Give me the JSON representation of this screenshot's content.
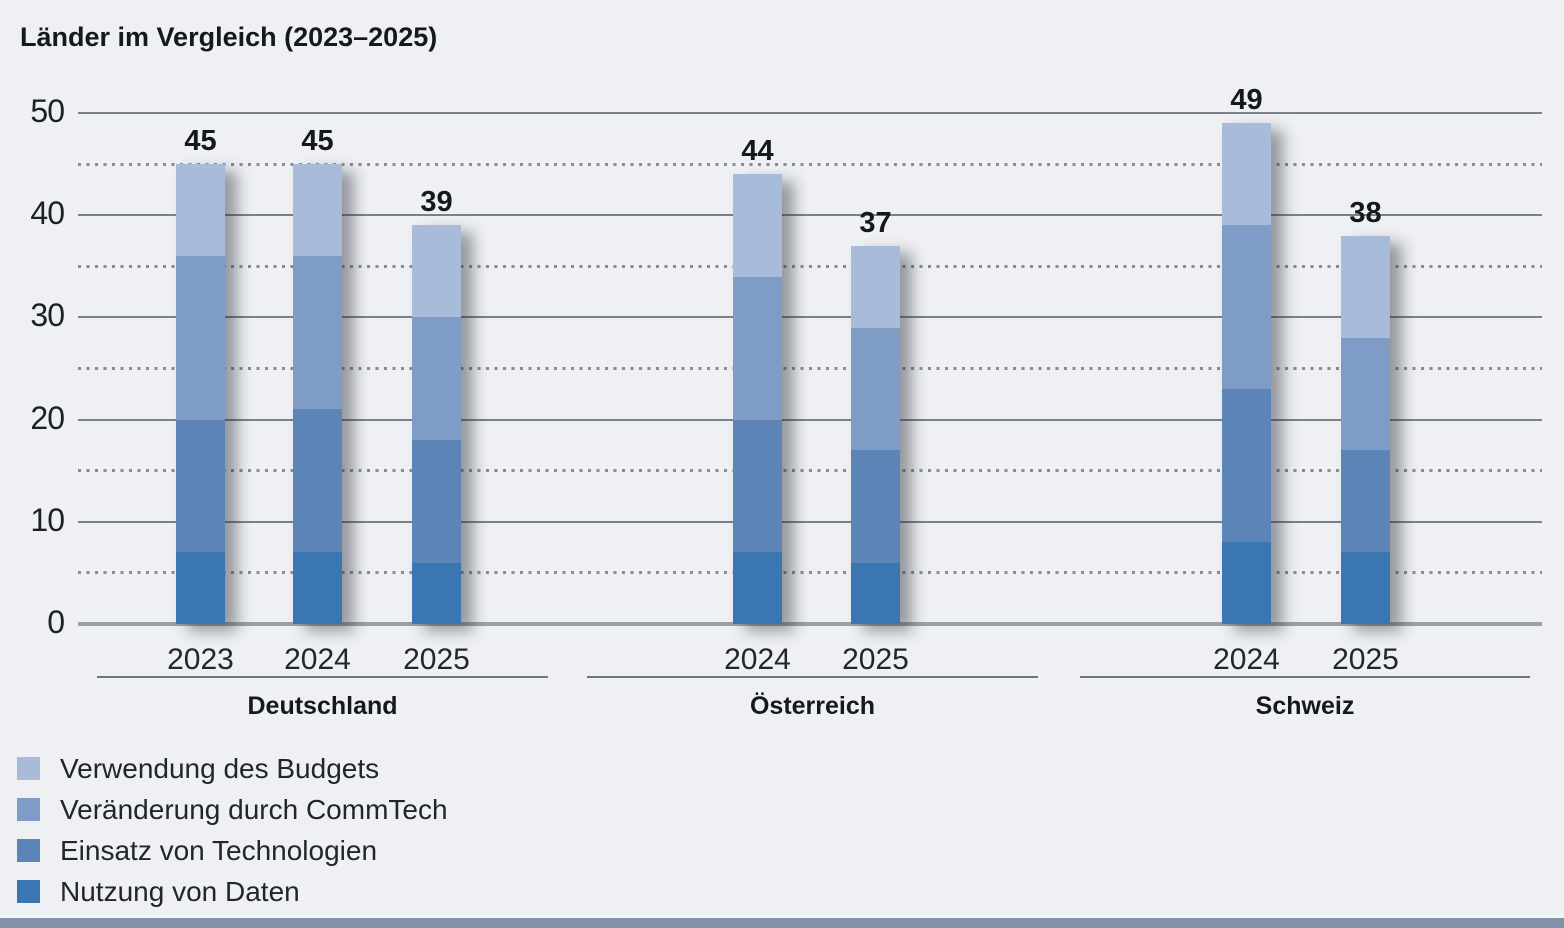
{
  "title": "Länder im Vergleich (2023–2025)",
  "chart_data": {
    "type": "bar",
    "stacked": true,
    "title": "Länder im Vergleich (2023–2025)",
    "ylim": [
      0,
      50
    ],
    "solid_gridlines": [
      0,
      10,
      20,
      30,
      40,
      50
    ],
    "dotted_gridlines": [
      5,
      15,
      25,
      35,
      45
    ],
    "grid": "on",
    "legend_position": "bottom-left",
    "groups": [
      {
        "label": "Deutschland",
        "bars": [
          {
            "year": "2023",
            "total": 45
          },
          {
            "year": "2024",
            "total": 45
          },
          {
            "year": "2025",
            "total": 39
          }
        ]
      },
      {
        "label": "Österreich",
        "bars": [
          {
            "year": "2024",
            "total": 44
          },
          {
            "year": "2025",
            "total": 37
          }
        ]
      },
      {
        "label": "Schweiz",
        "bars": [
          {
            "year": "2024",
            "total": 49
          },
          {
            "year": "2025",
            "total": 38
          }
        ]
      }
    ],
    "series": [
      {
        "name": "Nutzung von Daten",
        "color": "#3a76b2",
        "values": [
          7,
          7,
          6,
          7,
          6,
          8,
          7
        ]
      },
      {
        "name": "Einsatz von Technologien",
        "color": "#5d84b6",
        "values": [
          13,
          14,
          12,
          13,
          11,
          15,
          10
        ]
      },
      {
        "name": "Veränderung durch CommTech",
        "color": "#7e9cc5",
        "values": [
          16,
          15,
          12,
          14,
          12,
          16,
          11
        ]
      },
      {
        "name": "Verwendung des Budgets",
        "color": "#a8bcd9",
        "values": [
          9,
          9,
          9,
          10,
          8,
          10,
          10
        ]
      }
    ],
    "legend_order_top_to_bottom": [
      "Verwendung des Budgets",
      "Veränderung durch CommTech",
      "Einsatz von Technologien",
      "Nutzung von Daten"
    ]
  }
}
